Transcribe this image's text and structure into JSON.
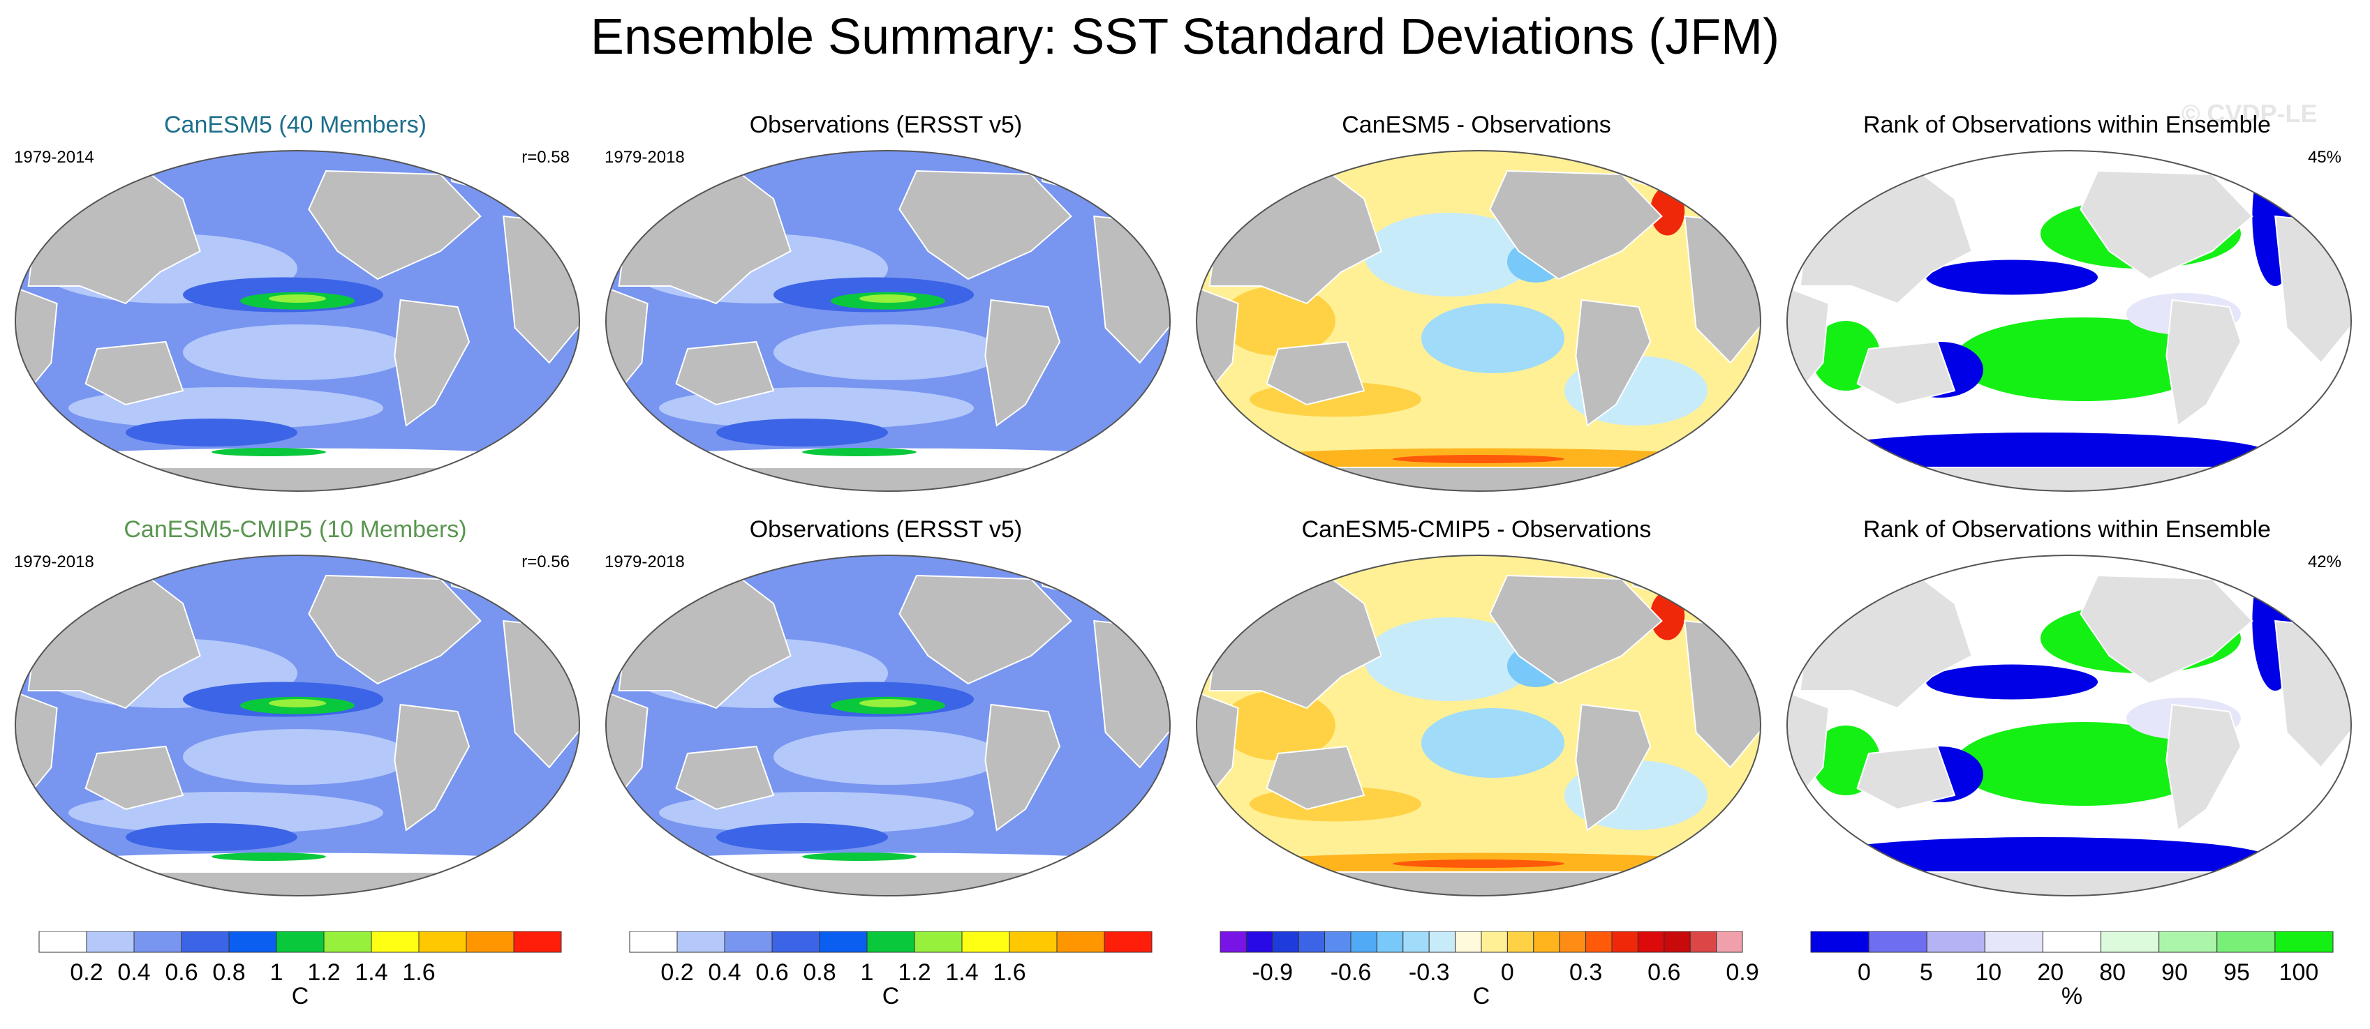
{
  "title": "Ensemble Summary: SST Standard Deviations (JFM)",
  "watermark": "© CVDP-LE",
  "colors": {
    "land": "#bdbdbd",
    "coast": "#ffffff",
    "std_levels": [
      "#ffffff",
      "#b4c8fa",
      "#7896f0",
      "#3c64e6",
      "#0a5ff0",
      "#0ac83c",
      "#96f03c",
      "#ffff14",
      "#ffc800",
      "#ff9600",
      "#ff1e0a"
    ],
    "diff_levels": [
      "#7814e6",
      "#280ae6",
      "#1e3cdc",
      "#3c64e6",
      "#5a8cf0",
      "#50aaf5",
      "#78c8fa",
      "#a0dcfa",
      "#c8ebfa",
      "#fffadc",
      "#fff096",
      "#ffd246",
      "#ffb41e",
      "#ff8c14",
      "#ff5a0a",
      "#f0280a",
      "#dc0a0a",
      "#c80a0a",
      "#dc4646",
      "#f0a0aa"
    ],
    "rank_levels": [
      "#0000e6",
      "#6e6ef0",
      "#b4b4f5",
      "#e6e6fa",
      "#ffffff",
      "#dcfadc",
      "#aaf5aa",
      "#78f078",
      "#14f014"
    ]
  },
  "panels": [
    {
      "title": "CanESM5 (40 Members)",
      "title_color": "#1e6e8c",
      "period": "1979-2014",
      "stat": "r=0.58",
      "kind": "std"
    },
    {
      "title": "Observations (ERSST v5)",
      "title_color": "#000000",
      "period": "1979-2018",
      "stat": "",
      "kind": "std"
    },
    {
      "title": "CanESM5 - Observations",
      "title_color": "#000000",
      "period": "",
      "stat": "",
      "kind": "diff"
    },
    {
      "title": "Rank of Observations within Ensemble",
      "title_color": "#000000",
      "period": "",
      "stat": "45%",
      "kind": "rank"
    },
    {
      "title": "CanESM5-CMIP5 (10 Members)",
      "title_color": "#5a9650",
      "period": "1979-2018",
      "stat": "r=0.56",
      "kind": "std"
    },
    {
      "title": "Observations (ERSST v5)",
      "title_color": "#000000",
      "period": "1979-2018",
      "stat": "",
      "kind": "std"
    },
    {
      "title": "CanESM5-CMIP5 - Observations",
      "title_color": "#000000",
      "period": "",
      "stat": "",
      "kind": "diff"
    },
    {
      "title": "Rank of Observations within Ensemble",
      "title_color": "#000000",
      "period": "",
      "stat": "42%",
      "kind": "rank"
    }
  ],
  "chart_data": [
    {
      "type": "heatmap",
      "title": "SST standard deviation colorbar (panels 1-2)",
      "unit": "C",
      "tick_labels": [
        "0.2",
        "0.4",
        "0.6",
        "0.8",
        "1",
        "1.2",
        "1.4",
        "1.6"
      ],
      "levels": [
        0,
        0.2,
        0.4,
        0.6,
        0.8,
        1.0,
        1.2,
        1.4,
        1.6
      ]
    },
    {
      "type": "heatmap",
      "title": "SST standard deviation colorbar (observations)",
      "unit": "C",
      "tick_labels": [
        "0.2",
        "0.4",
        "0.6",
        "0.8",
        "1",
        "1.2",
        "1.4",
        "1.6"
      ],
      "levels": [
        0,
        0.2,
        0.4,
        0.6,
        0.8,
        1.0,
        1.2,
        1.4,
        1.6
      ]
    },
    {
      "type": "heatmap",
      "title": "Model minus observations colorbar",
      "unit": "C",
      "tick_labels": [
        "-0.9",
        "-0.6",
        "-0.3",
        "0",
        "0.3",
        "0.6",
        "0.9"
      ],
      "levels": [
        -0.9,
        -0.6,
        -0.3,
        0,
        0.3,
        0.6,
        0.9
      ]
    },
    {
      "type": "heatmap",
      "title": "Rank of observations colorbar",
      "unit": "%",
      "tick_labels": [
        "0",
        "5",
        "10",
        "20",
        "80",
        "90",
        "95",
        "100"
      ],
      "levels": [
        0,
        5,
        10,
        20,
        80,
        90,
        95,
        100
      ]
    }
  ]
}
